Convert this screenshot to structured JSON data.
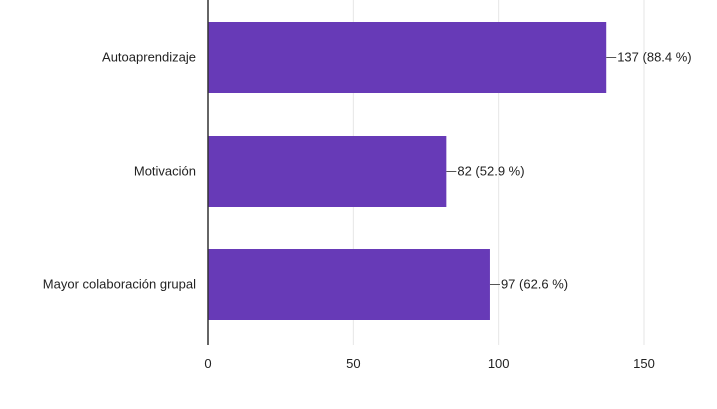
{
  "chart_data": {
    "type": "bar",
    "orientation": "horizontal",
    "categories": [
      "Autoaprendizaje",
      "Motivación",
      "Mayor colaboración grupal"
    ],
    "values": [
      137,
      82,
      97
    ],
    "data_labels": [
      "137 (88.4 %)",
      "82 (52.9 %)",
      "97 (62.6 %)"
    ],
    "xlim": [
      0,
      150
    ],
    "x_ticks": [
      0,
      50,
      100,
      150
    ],
    "x_tick_labels": [
      "0",
      "50",
      "100",
      "150"
    ],
    "grid": true,
    "title": "",
    "xlabel": "",
    "ylabel": ""
  },
  "colors": {
    "bar": "#673ab7",
    "gridline": "#e6e6e6",
    "axis": "#333333",
    "text": "#222222"
  }
}
